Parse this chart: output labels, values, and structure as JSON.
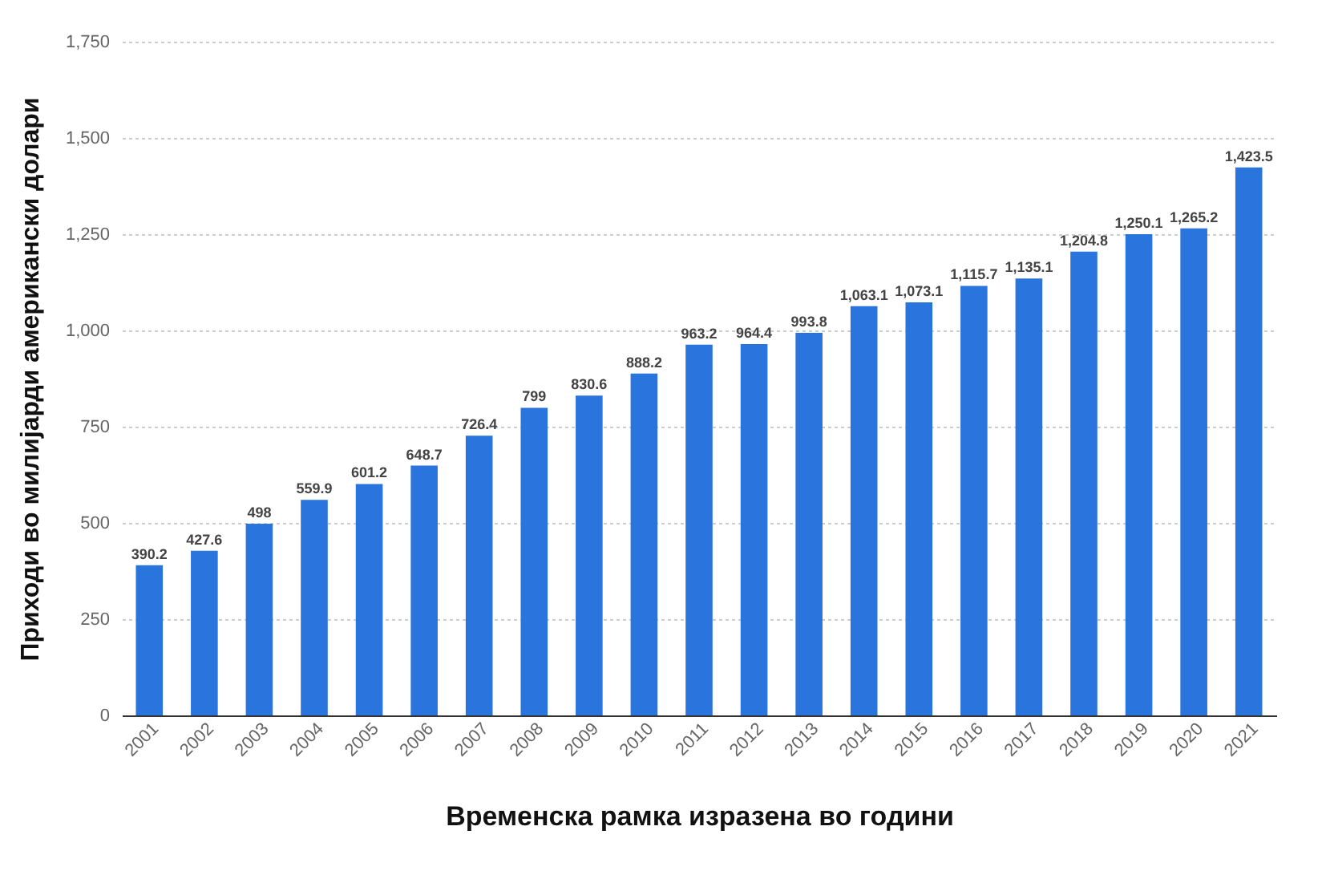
{
  "chart_data": {
    "type": "bar",
    "xlabel": "Временска рамка изразена во години",
    "ylabel": "Приходи во милијарди американски долари",
    "categories": [
      "2001",
      "2002",
      "2003",
      "2004",
      "2005",
      "2006",
      "2007",
      "2008",
      "2009",
      "2010",
      "2011",
      "2012",
      "2013",
      "2014",
      "2015",
      "2016",
      "2017",
      "2018",
      "2019",
      "2020",
      "2021"
    ],
    "values": [
      390.2,
      427.6,
      498,
      559.9,
      601.2,
      648.7,
      726.4,
      799,
      830.6,
      888.2,
      963.2,
      964.4,
      993.8,
      1063.1,
      1073.1,
      1115.7,
      1135.1,
      1204.8,
      1250.1,
      1265.2,
      1423.5
    ],
    "color": "#2a74de",
    "ylim": [
      0,
      1750
    ],
    "yticks": [
      0,
      250,
      500,
      750,
      {
        "value": 1000,
        "label": "1,000"
      },
      {
        "value": 1250,
        "label": "1,250"
      },
      {
        "value": 1500,
        "label": "1,500"
      },
      {
        "value": 1750,
        "label": "1,750"
      }
    ],
    "grid": "y",
    "value_labels": [
      "390.2",
      "427.6",
      "498",
      "559.9",
      "601.2",
      "648.7",
      "726.4",
      "799",
      "830.6",
      "888.2",
      "963.2",
      "964.4",
      "993.8",
      "1,063.1",
      "1,073.1",
      "1,115.7",
      "1,135.1",
      "1,204.8",
      "1,250.1",
      "1,265.2",
      "1,423.5"
    ]
  }
}
